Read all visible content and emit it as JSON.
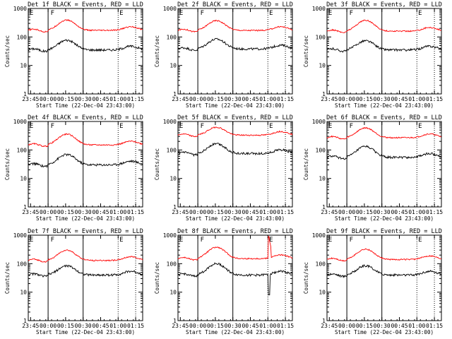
{
  "figure": {
    "colors": {
      "events": "#000000",
      "lld": "#ff0000",
      "axes": "#000000"
    }
  },
  "chart_data": [
    {
      "type": "line",
      "title": "Det 1f BLACK = Events, RED = LLD",
      "xlabel": "Start Time (22-Dec-04 23:43:00)",
      "ylabel": "Counts/sec",
      "y_scale": "log",
      "ylim": [
        1,
        1000
      ],
      "x_tick_labels": [
        "23:45",
        "00:00",
        "00:15",
        "00:30",
        "00:45",
        "01:00",
        "01:15"
      ],
      "y_tick_labels": [
        "1",
        "10",
        "100",
        "1000"
      ],
      "x_unit": "minutes after 23:43",
      "xlim": [
        0,
        98
      ],
      "flags": [
        "E",
        "F",
        "E"
      ],
      "series": [
        {
          "color": "#000000",
          "baseline": 35,
          "bump": 2.2,
          "spike": false
        },
        {
          "color": "#ff0000",
          "baseline": 170,
          "bump": 2.3,
          "spike": false
        }
      ]
    },
    {
      "type": "line",
      "title": "Det 2f BLACK = Events, RED = LLD",
      "xlabel": "Start Time (22-Dec-04 23:43:00)",
      "ylabel": "Counts/sec",
      "y_scale": "log",
      "ylim": [
        1,
        1000
      ],
      "x_tick_labels": [
        "23:45",
        "00:00",
        "00:15",
        "00:30",
        "00:45",
        "01:00",
        "01:15"
      ],
      "y_tick_labels": [
        "1",
        "10",
        "100",
        "1000"
      ],
      "x_unit": "minutes after 23:43",
      "xlim": [
        0,
        98
      ],
      "flags": [
        "E",
        "F",
        "E"
      ],
      "series": [
        {
          "color": "#000000",
          "baseline": 38,
          "bump": 2.2,
          "spike": false
        },
        {
          "color": "#ff0000",
          "baseline": 170,
          "bump": 2.2,
          "spike": false
        }
      ]
    },
    {
      "type": "line",
      "title": "Det 3f BLACK = Events, RED = LLD",
      "xlabel": "Start Time (22-Dec-04 23:43:00)",
      "ylabel": "Counts/sec",
      "y_scale": "log",
      "ylim": [
        1,
        1000
      ],
      "x_tick_labels": [
        "23:45",
        "00:00",
        "00:15",
        "00:30",
        "00:45",
        "01:00",
        "01:15"
      ],
      "y_tick_labels": [
        "1",
        "10",
        "100",
        "1000"
      ],
      "x_unit": "minutes after 23:43",
      "xlim": [
        0,
        98
      ],
      "flags": [
        "E",
        "F",
        "E"
      ],
      "series": [
        {
          "color": "#000000",
          "baseline": 35,
          "bump": 2.1,
          "spike": false
        },
        {
          "color": "#ff0000",
          "baseline": 160,
          "bump": 2.4,
          "spike": false
        }
      ]
    },
    {
      "type": "line",
      "title": "Det 4f BLACK = Events, RED = LLD",
      "xlabel": "Start Time (22-Dec-04 23:43:00)",
      "ylabel": "Counts/sec",
      "y_scale": "log",
      "ylim": [
        1,
        1000
      ],
      "x_tick_labels": [
        "23:45",
        "00:00",
        "00:15",
        "00:30",
        "00:45",
        "01:00",
        "01:15"
      ],
      "y_tick_labels": [
        "1",
        "10",
        "100",
        "1000"
      ],
      "x_unit": "minutes after 23:43",
      "xlim": [
        0,
        98
      ],
      "flags": [
        "E",
        "F",
        "E"
      ],
      "series": [
        {
          "color": "#000000",
          "baseline": 30,
          "bump": 2.3,
          "spike": false
        },
        {
          "color": "#ff0000",
          "baseline": 150,
          "bump": 2.4,
          "spike": false
        }
      ]
    },
    {
      "type": "line",
      "title": "Det 5f BLACK = Events, RED = LLD",
      "xlabel": "Start Time (22-Dec-04 23:43:00)",
      "ylabel": "Counts/sec",
      "y_scale": "log",
      "ylim": [
        1,
        1000
      ],
      "x_tick_labels": [
        "23:45",
        "00:00",
        "00:15",
        "00:30",
        "00:45",
        "01:00",
        "01:15"
      ],
      "y_tick_labels": [
        "1",
        "10",
        "100",
        "1000"
      ],
      "x_unit": "minutes after 23:43",
      "xlim": [
        0,
        98
      ],
      "flags": [
        "E",
        "F",
        "E"
      ],
      "series": [
        {
          "color": "#000000",
          "baseline": 75,
          "bump": 2.2,
          "spike": false
        },
        {
          "color": "#ff0000",
          "baseline": 330,
          "bump": 1.9,
          "spike": false
        }
      ]
    },
    {
      "type": "line",
      "title": "Det 6f BLACK = Events, RED = LLD",
      "xlabel": "Start Time (22-Dec-04 23:43:00)",
      "ylabel": "Counts/sec",
      "y_scale": "log",
      "ylim": [
        1,
        1000
      ],
      "x_tick_labels": [
        "23:45",
        "00:00",
        "00:15",
        "00:30",
        "00:45",
        "01:00",
        "01:15"
      ],
      "y_tick_labels": [
        "1",
        "10",
        "100",
        "1000"
      ],
      "x_unit": "minutes after 23:43",
      "xlim": [
        0,
        98
      ],
      "flags": [
        "E",
        "F",
        "E"
      ],
      "series": [
        {
          "color": "#000000",
          "baseline": 55,
          "bump": 2.4,
          "spike": false
        },
        {
          "color": "#ff0000",
          "baseline": 270,
          "bump": 2.2,
          "spike": false
        }
      ]
    },
    {
      "type": "line",
      "title": "Det 7f BLACK = Events, RED = LLD",
      "xlabel": "Start Time (22-Dec-04 23:43:00)",
      "ylabel": "Counts/sec",
      "y_scale": "log",
      "ylim": [
        1,
        1000
      ],
      "x_tick_labels": [
        "23:45",
        "00:00",
        "00:15",
        "00:30",
        "00:45",
        "01:00",
        "01:15"
      ],
      "y_tick_labels": [
        "1",
        "10",
        "100",
        "1000"
      ],
      "x_unit": "minutes after 23:43",
      "xlim": [
        0,
        98
      ],
      "flags": [
        "E",
        "F",
        "E"
      ],
      "series": [
        {
          "color": "#000000",
          "baseline": 40,
          "bump": 2.1,
          "spike": false
        },
        {
          "color": "#ff0000",
          "baseline": 130,
          "bump": 2.3,
          "spike": false
        }
      ]
    },
    {
      "type": "line",
      "title": "Det 8f BLACK = Events, RED = LLD",
      "xlabel": "Start Time (22-Dec-04 23:43:00)",
      "ylabel": "Counts/sec",
      "y_scale": "log",
      "ylim": [
        1,
        1000
      ],
      "x_tick_labels": [
        "23:45",
        "00:00",
        "00:15",
        "00:30",
        "00:45",
        "01:00",
        "01:15"
      ],
      "y_tick_labels": [
        "1",
        "10",
        "100",
        "1000"
      ],
      "x_unit": "minutes after 23:43",
      "xlim": [
        0,
        98
      ],
      "flags": [
        "E",
        "F",
        "E"
      ],
      "series": [
        {
          "color": "#000000",
          "baseline": 40,
          "bump": 2.5,
          "spike": true
        },
        {
          "color": "#ff0000",
          "baseline": 150,
          "bump": 2.5,
          "spike": true
        }
      ]
    },
    {
      "type": "line",
      "title": "Det 9f BLACK = Events, RED = LLD",
      "xlabel": "Start Time (22-Dec-04 23:43:00)",
      "ylabel": "Counts/sec",
      "y_scale": "log",
      "ylim": [
        1,
        1000
      ],
      "x_tick_labels": [
        "23:45",
        "00:00",
        "00:15",
        "00:30",
        "00:45",
        "01:00",
        "01:15"
      ],
      "y_tick_labels": [
        "1",
        "10",
        "100",
        "1000"
      ],
      "x_unit": "minutes after 23:43",
      "xlim": [
        0,
        98
      ],
      "flags": [
        "E",
        "F",
        "E"
      ],
      "series": [
        {
          "color": "#000000",
          "baseline": 40,
          "bump": 2.1,
          "spike": false
        },
        {
          "color": "#ff0000",
          "baseline": 140,
          "bump": 2.3,
          "spike": false
        }
      ]
    }
  ]
}
